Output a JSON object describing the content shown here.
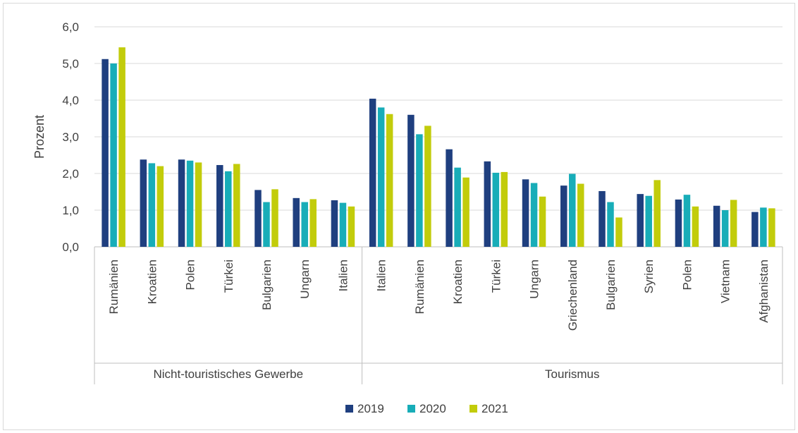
{
  "chart_data": {
    "type": "bar",
    "ylabel": "Prozent",
    "ylim": [
      0,
      6
    ],
    "y_ticks": [
      "0,0",
      "1,0",
      "2,0",
      "3,0",
      "4,0",
      "5,0",
      "6,0"
    ],
    "grid": true,
    "legend_position": "bottom",
    "groups": [
      {
        "name": "Nicht-touristisches Gewerbe",
        "categories": [
          "Rumänien",
          "Kroatien",
          "Polen",
          "Türkei",
          "Bulgarien",
          "Ungarn",
          "Italien"
        ],
        "series": [
          {
            "name": "2019",
            "values": [
              5.12,
              2.38,
              2.38,
              2.23,
              1.55,
              1.33,
              1.27
            ]
          },
          {
            "name": "2020",
            "values": [
              5.0,
              2.28,
              2.35,
              2.06,
              1.22,
              1.22,
              1.2
            ]
          },
          {
            "name": "2021",
            "values": [
              5.44,
              2.2,
              2.3,
              2.26,
              1.57,
              1.3,
              1.1
            ]
          }
        ]
      },
      {
        "name": "Tourismus",
        "categories": [
          "Italien",
          "Rumänien",
          "Kroatien",
          "Türkei",
          "Ungarn",
          "Griechenland",
          "Bulgarien",
          "Syrien",
          "Polen",
          "Vietnam",
          "Afghanistan"
        ],
        "series": [
          {
            "name": "2019",
            "values": [
              4.04,
              3.6,
              2.66,
              2.33,
              1.84,
              1.67,
              1.52,
              1.44,
              1.29,
              1.12,
              0.95
            ]
          },
          {
            "name": "2020",
            "values": [
              3.8,
              3.07,
              2.16,
              2.02,
              1.74,
              1.99,
              1.22,
              1.39,
              1.42,
              1.0,
              1.07
            ]
          },
          {
            "name": "2021",
            "values": [
              3.62,
              3.3,
              1.89,
              2.04,
              1.37,
              1.72,
              0.8,
              1.82,
              1.1,
              1.28,
              1.05
            ]
          }
        ]
      }
    ],
    "legend": [
      "2019",
      "2020",
      "2021"
    ],
    "colors": [
      "#1f3f7f",
      "#18adb8",
      "#c2cc0b"
    ]
  }
}
